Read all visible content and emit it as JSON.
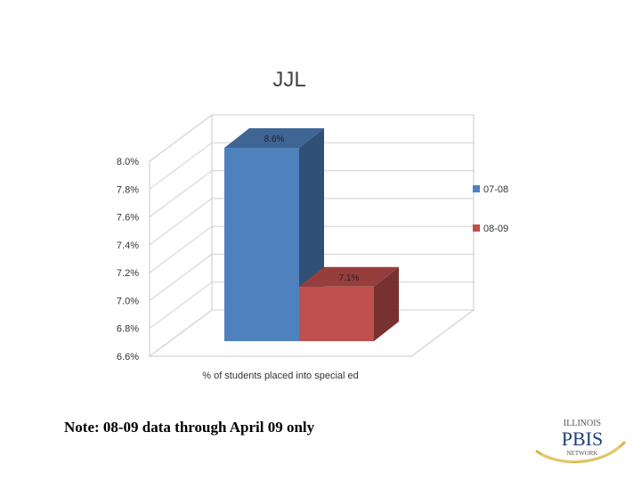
{
  "chart_data": {
    "type": "bar",
    "title": "JJL",
    "xlabel": "% of students placed into special ed",
    "ylabel": "",
    "ylim": [
      6.6,
      8.0
    ],
    "yticks": [
      "8.0%",
      "7.8%",
      "7.6%",
      "7.4%",
      "7.2%",
      "7.0%",
      "6.8%",
      "6.6%"
    ],
    "ytick_values": [
      8.0,
      7.8,
      7.6,
      7.4,
      7.2,
      7.0,
      6.8,
      6.6
    ],
    "grid": true,
    "legend_position": "right",
    "series": [
      {
        "name": "07-08",
        "value": 8.6,
        "label": "8.6%",
        "color": "#4f81bd"
      },
      {
        "name": "08-09",
        "value": 7.1,
        "label": "7.1%",
        "color": "#c0504d"
      }
    ]
  },
  "note": "Note: 08-09 data through April 09 only",
  "logo": {
    "top": "ILLINOIS",
    "middle": "PBIS",
    "bottom": "NETWORK"
  }
}
